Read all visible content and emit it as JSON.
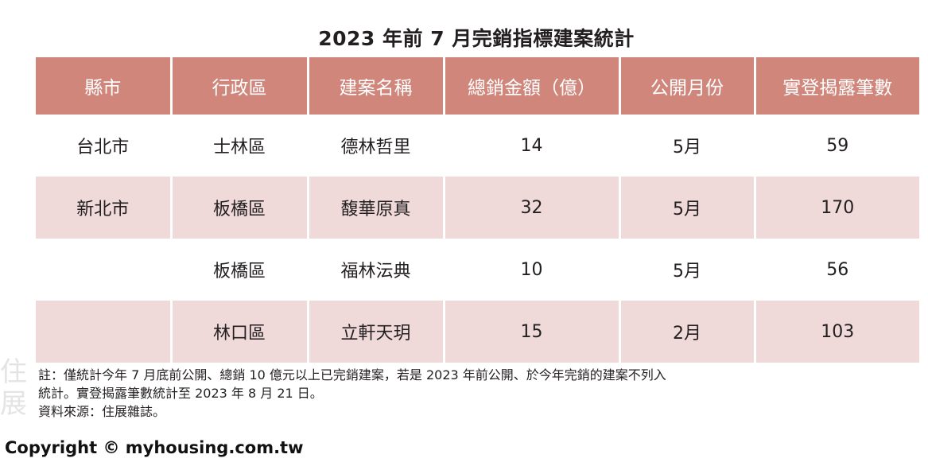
{
  "title": "2023 年前 7 月完銷指標建案統計",
  "table": {
    "headers": [
      "縣市",
      "行政區",
      "建案名稱",
      "總銷金額（億）",
      "公開月份",
      "實登揭露筆數"
    ],
    "rows": [
      [
        "台北市",
        "士林區",
        "德林哲里",
        "14",
        "5月",
        "59"
      ],
      [
        "新北市",
        "板橋區",
        "馥華原真",
        "32",
        "5月",
        "170"
      ],
      [
        "",
        "板橋區",
        "福林沄典",
        "10",
        "5月",
        "56"
      ],
      [
        "",
        "林口區",
        "立軒天玥",
        "15",
        "2月",
        "103"
      ]
    ]
  },
  "notes": {
    "line1": "註：僅統計今年 7 月底前公開、總銷 10 億元以上已完銷建案，若是 2023 年前公開、於今年完銷的建案不列入",
    "line2": "統計。實登揭露筆數統計至 2023 年 8 月 21 日。",
    "line3": "資料來源：住展雜誌。"
  },
  "watermark": "住展",
  "copyright": "Copyright © myhousing.com.tw",
  "colors": {
    "header_bg": "#d0867b",
    "header_text": "#ffffff",
    "row_alt_bg": "#efd9d9",
    "row_bg": "#ffffff"
  }
}
